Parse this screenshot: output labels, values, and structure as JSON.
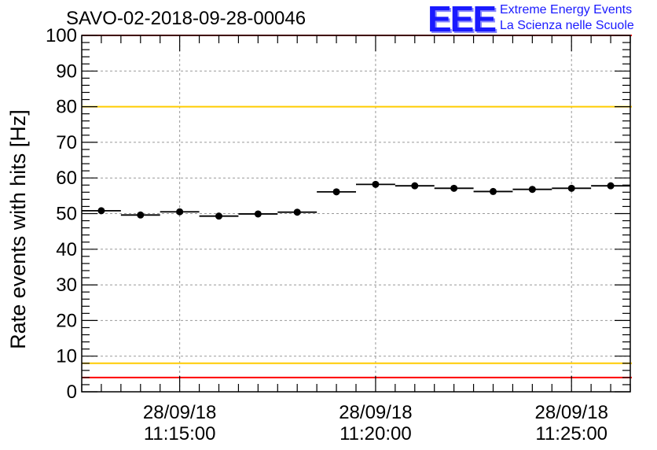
{
  "title": "SAVO-02-2018-09-28-00046",
  "logo": {
    "mark": "EEE",
    "line1": "Extreme Energy Events",
    "line2": "La Scienza nelle Scuole",
    "color": "#1a1aff"
  },
  "chart_data": {
    "type": "scatter",
    "ylabel": "Rate events with hits [Hz]",
    "xlabel": "",
    "ylim": [
      0,
      100
    ],
    "yticks": [
      0,
      10,
      20,
      30,
      40,
      50,
      60,
      70,
      80,
      90,
      100
    ],
    "xlim": [
      "28/09/18 11:12:30",
      "28/09/18 11:26:30"
    ],
    "xticks": [
      {
        "date": "28/09/18",
        "time": "11:15:00"
      },
      {
        "date": "28/09/18",
        "time": "11:20:00"
      },
      {
        "date": "28/09/18",
        "time": "11:25:00"
      }
    ],
    "grid": true,
    "bin_width_s": 60,
    "series": [
      {
        "x": [
          "11:13:00",
          "11:14:00",
          "11:15:00",
          "11:16:00",
          "11:17:00",
          "11:18:00",
          "11:19:00",
          "11:20:00",
          "11:21:00",
          "11:22:00",
          "11:23:00",
          "11:24:00",
          "11:25:00",
          "11:26:00"
        ],
        "y": [
          50.8,
          49.6,
          50.5,
          49.3,
          49.9,
          50.4,
          56.1,
          58.2,
          57.8,
          57.1,
          56.2,
          56.8,
          57.1,
          57.8
        ]
      }
    ],
    "reference_lines": [
      {
        "y": 100,
        "color": "#ff0000"
      },
      {
        "y": 80,
        "color": "#ffcc00"
      },
      {
        "y": 8,
        "color": "#ffcc00"
      },
      {
        "y": 4,
        "color": "#ff0000"
      }
    ]
  }
}
